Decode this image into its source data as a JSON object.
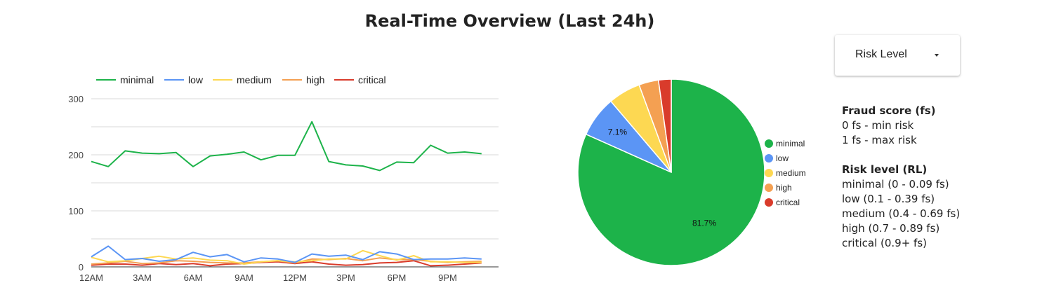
{
  "title": "Real-Time Overview (Last 24h)",
  "dropdown": {
    "label": "Risk Level"
  },
  "info": {
    "fraud_heading": "Fraud score (fs)",
    "fraud_lines": [
      "0 fs - min risk",
      "1 fs - max risk"
    ],
    "risk_heading": "Risk level (RL)",
    "risk_lines": [
      "minimal (0 - 0.09 fs)",
      "low (0.1 - 0.39 fs)",
      "medium (0.4 - 0.69 fs)",
      "high (0.7 - 0.89 fs)",
      "critical (0.9+ fs)"
    ]
  },
  "colors": {
    "minimal": "#1db34a",
    "low": "#5b95f5",
    "medium": "#fdd852",
    "high": "#f4a052",
    "critical": "#d93b2b"
  },
  "chart_data": [
    {
      "type": "line",
      "x_tick_labels": [
        "12AM",
        "3AM",
        "6AM",
        "9AM",
        "12PM",
        "3PM",
        "6PM",
        "9PM"
      ],
      "y_tick_labels": [
        "0",
        "100",
        "200",
        "300"
      ],
      "ylim": [
        0,
        300
      ],
      "legend_position": "top",
      "grid": true,
      "series": [
        {
          "name": "minimal",
          "values": [
            188,
            179,
            207,
            203,
            202,
            204,
            179,
            198,
            201,
            205,
            191,
            199,
            199,
            259,
            188,
            182,
            180,
            172,
            187,
            186,
            217,
            203,
            205,
            202
          ]
        },
        {
          "name": "low",
          "values": [
            18,
            37,
            13,
            15,
            10,
            13,
            26,
            18,
            22,
            9,
            16,
            14,
            8,
            23,
            19,
            21,
            13,
            27,
            23,
            13,
            14,
            14,
            16,
            14
          ]
        },
        {
          "name": "medium",
          "values": [
            17,
            9,
            11,
            15,
            19,
            14,
            16,
            12,
            11,
            5,
            9,
            11,
            9,
            11,
            14,
            14,
            29,
            20,
            12,
            20,
            9,
            9,
            8,
            8
          ]
        },
        {
          "name": "high",
          "values": [
            5,
            7,
            10,
            6,
            7,
            11,
            10,
            8,
            7,
            7,
            9,
            11,
            7,
            14,
            13,
            15,
            11,
            16,
            13,
            13,
            10,
            8,
            9,
            10
          ]
        },
        {
          "name": "critical",
          "values": [
            3,
            5,
            5,
            3,
            6,
            4,
            6,
            2,
            5,
            6,
            8,
            9,
            6,
            9,
            5,
            3,
            4,
            7,
            8,
            11,
            2,
            3,
            5,
            7
          ]
        }
      ]
    },
    {
      "type": "pie",
      "legend_position": "right",
      "slices": [
        {
          "name": "minimal",
          "value": 81.7,
          "label": "81.7%"
        },
        {
          "name": "low",
          "value": 7.1,
          "label": "7.1%"
        },
        {
          "name": "medium",
          "value": 5.6,
          "label": ""
        },
        {
          "name": "high",
          "value": 3.4,
          "label": ""
        },
        {
          "name": "critical",
          "value": 2.2,
          "label": ""
        }
      ]
    }
  ]
}
